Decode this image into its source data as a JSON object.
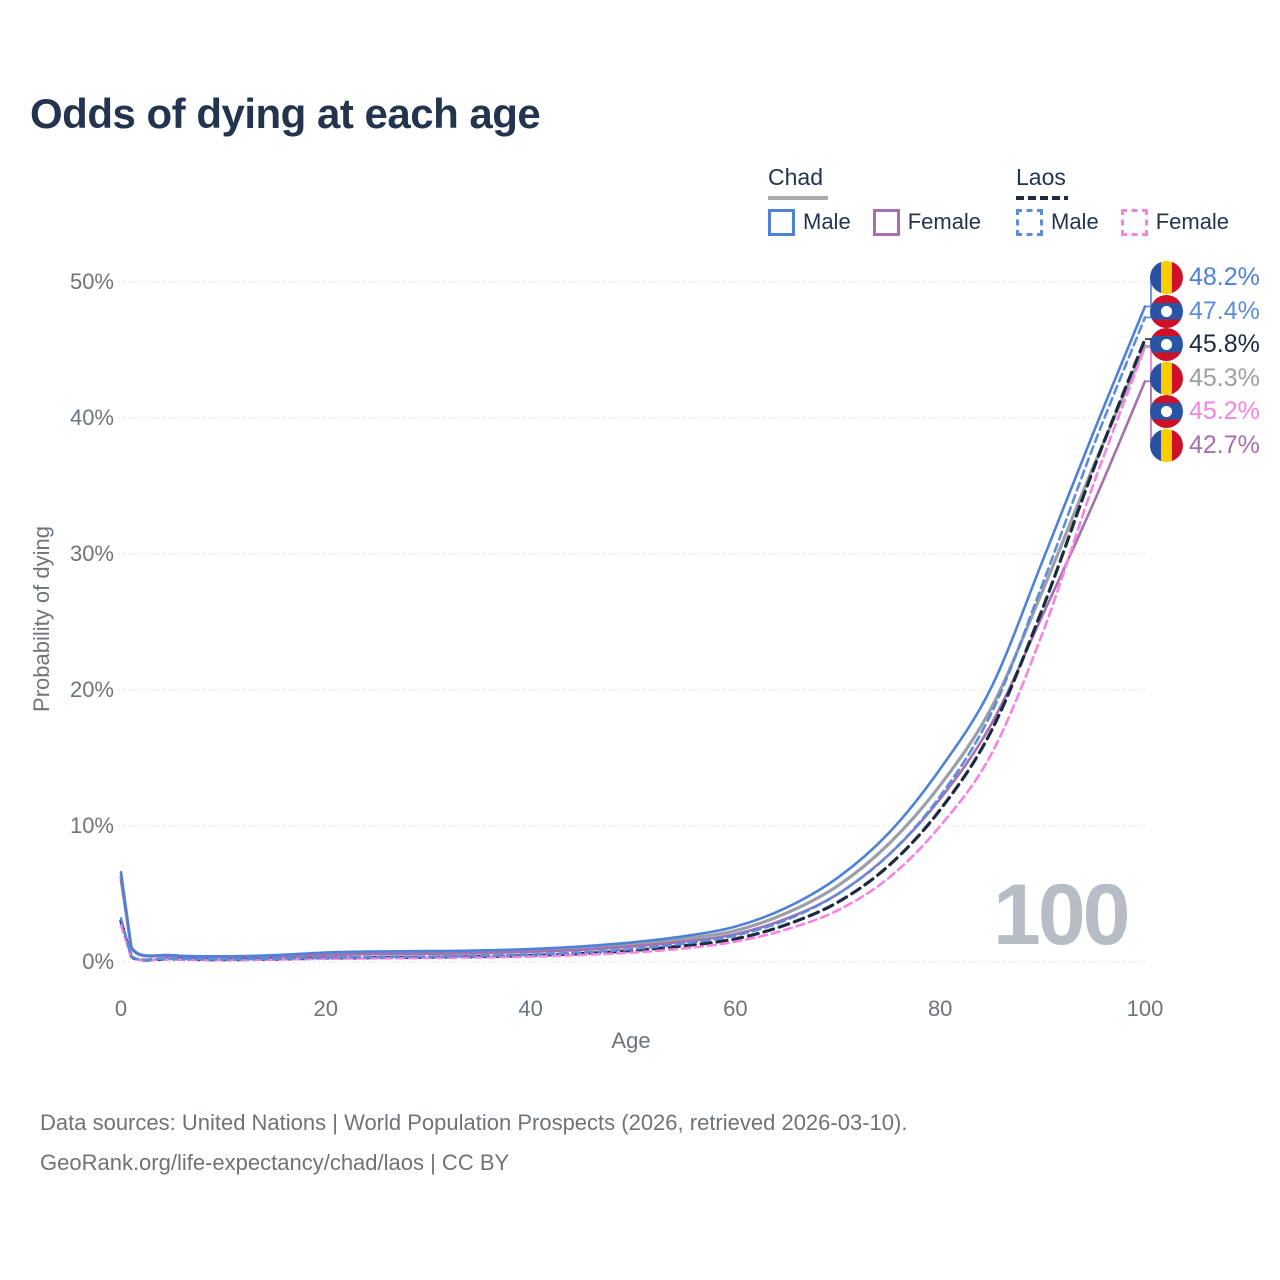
{
  "title": "Odds of dying at each age",
  "watermark": "100",
  "footer": {
    "line1": "Data sources: United Nations | World Population Prospects (2026, retrieved 2026-03-10).",
    "line2": "GeoRank.org/life-expectancy/chad/laos | CC BY"
  },
  "legend": {
    "groups": [
      {
        "country": "Chad",
        "line_style": "solid",
        "line_color": "#a9adb2",
        "items": [
          {
            "label": "Male",
            "color": "#4d82d8",
            "dashed": false
          },
          {
            "label": "Female",
            "color": "#a66fae",
            "dashed": false
          }
        ]
      },
      {
        "country": "Laos",
        "line_style": "dashed",
        "line_color": "#1c2b3f",
        "items": [
          {
            "label": "Male",
            "color": "#5e8cdd",
            "dashed": true
          },
          {
            "label": "Female",
            "color": "#f783e3",
            "dashed": true
          }
        ]
      }
    ]
  },
  "chart_data": {
    "type": "line",
    "title": "Odds of dying at each age",
    "xlabel": "Age",
    "ylabel": "Probability of dying",
    "xlim": [
      0,
      100
    ],
    "ylim_percent": [
      0,
      50
    ],
    "x_ticks": [
      0,
      20,
      40,
      60,
      80,
      100
    ],
    "y_tick_values": [
      0,
      10,
      20,
      30,
      40,
      50
    ],
    "y_tick_labels": [
      "0%",
      "10%",
      "20%",
      "30%",
      "40%",
      "50%"
    ],
    "grid": "horizontal-dotted",
    "legend_position": "top-right",
    "ages": [
      0,
      1,
      5,
      10,
      15,
      20,
      25,
      30,
      35,
      40,
      45,
      50,
      55,
      60,
      65,
      70,
      75,
      80,
      85,
      90,
      95,
      100
    ],
    "series": [
      {
        "id": "chad-male",
        "name": "Chad Male",
        "country": "Chad",
        "sex": "Male",
        "color": "#4d82d8",
        "dash": null,
        "width": 2.6,
        "end_label": "48.2%",
        "end_value": 48.2,
        "flag": "chad",
        "values": [
          6.6,
          1.1,
          0.5,
          0.42,
          0.5,
          0.7,
          0.78,
          0.8,
          0.85,
          0.95,
          1.15,
          1.45,
          1.9,
          2.6,
          4.0,
          6.2,
          9.5,
          14.2,
          20.2,
          29.5,
          39.0,
          48.2
        ]
      },
      {
        "id": "laos-male",
        "name": "Laos Male",
        "country": "Laos",
        "sex": "Male",
        "color": "#5e8cdd",
        "dash": "8 5",
        "width": 2.6,
        "end_label": "47.4%",
        "end_value": 47.4,
        "flag": "laos",
        "values": [
          3.2,
          0.42,
          0.25,
          0.2,
          0.24,
          0.32,
          0.37,
          0.4,
          0.45,
          0.55,
          0.7,
          0.95,
          1.35,
          1.95,
          3.1,
          5.0,
          7.9,
          12.2,
          18.3,
          27.8,
          38.0,
          47.4
        ]
      },
      {
        "id": "laos-both",
        "name": "Laos Both sexes",
        "country": "Laos",
        "sex": "Both",
        "color": "#1c2b3f",
        "dash": "10 6",
        "width": 3.2,
        "end_label": "45.8%",
        "end_value": 45.8,
        "flag": "laos",
        "values": [
          3.0,
          0.39,
          0.22,
          0.17,
          0.21,
          0.28,
          0.32,
          0.35,
          0.4,
          0.48,
          0.62,
          0.85,
          1.2,
          1.7,
          2.75,
          4.4,
          7.1,
          11.2,
          17.0,
          26.0,
          36.3,
          45.8
        ]
      },
      {
        "id": "chad-both",
        "name": "Chad Both sexes",
        "country": "Chad",
        "sex": "Both",
        "color": "#9b9fa6",
        "dash": null,
        "width": 3.2,
        "end_label": "45.3%",
        "end_value": 45.3,
        "flag": "chad",
        "values": [
          6.3,
          1.05,
          0.47,
          0.38,
          0.45,
          0.6,
          0.68,
          0.7,
          0.75,
          0.85,
          1.02,
          1.3,
          1.7,
          2.3,
          3.6,
          5.6,
          8.7,
          13.0,
          18.7,
          27.3,
          36.5,
          45.3
        ]
      },
      {
        "id": "laos-female",
        "name": "Laos Female",
        "country": "Laos",
        "sex": "Female",
        "color": "#f783e3",
        "dash": "8 5",
        "width": 2.6,
        "end_label": "45.2%",
        "end_value": 45.2,
        "flag": "laos",
        "values": [
          2.7,
          0.36,
          0.2,
          0.15,
          0.18,
          0.24,
          0.27,
          0.3,
          0.34,
          0.4,
          0.52,
          0.7,
          1.0,
          1.5,
          2.4,
          3.8,
          6.2,
          10.0,
          15.3,
          24.2,
          35.2,
          45.2
        ]
      },
      {
        "id": "chad-female",
        "name": "Chad Female",
        "country": "Chad",
        "sex": "Female",
        "color": "#a66fae",
        "dash": null,
        "width": 2.6,
        "end_label": "42.7%",
        "end_value": 42.7,
        "flag": "chad",
        "values": [
          6.0,
          1.0,
          0.44,
          0.34,
          0.4,
          0.5,
          0.58,
          0.6,
          0.65,
          0.75,
          0.9,
          1.15,
          1.5,
          2.05,
          3.2,
          5.0,
          7.9,
          12.0,
          17.5,
          25.5,
          33.8,
          42.7
        ]
      }
    ],
    "draw_order": [
      3,
      5,
      0,
      2,
      4,
      1
    ]
  }
}
